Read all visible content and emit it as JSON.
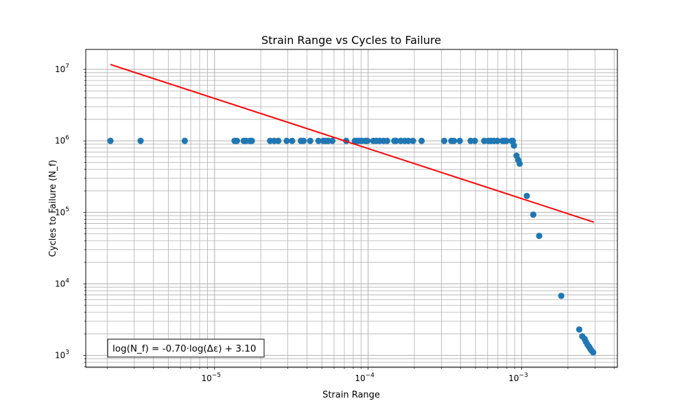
{
  "chart_data": {
    "type": "scatter",
    "title": "Strain Range vs Cycles to Failure",
    "xlabel": "Strain Range",
    "ylabel": "Cycles to Failure (N_f)",
    "xscale": "log",
    "yscale": "log",
    "xlim": [
      1.45e-06,
      0.0042
    ],
    "ylim": [
      680,
      19000000
    ],
    "grid": "both-major-minor",
    "x_ticks": [
      {
        "value": 1e-05,
        "base": "10",
        "exp": "−5"
      },
      {
        "value": 0.0001,
        "base": "10",
        "exp": "−4"
      },
      {
        "value": 0.001,
        "base": "10",
        "exp": "−3"
      }
    ],
    "y_ticks": [
      {
        "value": 1000,
        "base": "10",
        "exp": "3"
      },
      {
        "value": 10000,
        "base": "10",
        "exp": "4"
      },
      {
        "value": 100000,
        "base": "10",
        "exp": "5"
      },
      {
        "value": 1000000,
        "base": "10",
        "exp": "6"
      },
      {
        "value": 10000000,
        "base": "10",
        "exp": "7"
      }
    ],
    "series": [
      {
        "kind": "scatter",
        "color": "#1f77b4",
        "points": [
          [
            2.1e-06,
            1000000
          ],
          [
            3.3e-06,
            1000000
          ],
          [
            6.4e-06,
            1000000
          ],
          [
            1.35e-05,
            1000000
          ],
          [
            1.4e-05,
            1000000
          ],
          [
            1.55e-05,
            1000000
          ],
          [
            1.6e-05,
            1000000
          ],
          [
            1.7e-05,
            1000000
          ],
          [
            1.75e-05,
            1000000
          ],
          [
            2.3e-05,
            1000000
          ],
          [
            2.45e-05,
            1000000
          ],
          [
            2.6e-05,
            1000000
          ],
          [
            2.95e-05,
            1000000
          ],
          [
            3.2e-05,
            1000000
          ],
          [
            3.65e-05,
            1000000
          ],
          [
            3.8e-05,
            1000000
          ],
          [
            4.2e-05,
            1000000
          ],
          [
            4.75e-05,
            1000000
          ],
          [
            5.1e-05,
            1000000
          ],
          [
            5.3e-05,
            1000000
          ],
          [
            5.5e-05,
            1000000
          ],
          [
            5.85e-05,
            1000000
          ],
          [
            7.2e-05,
            1000000
          ],
          [
            8.2e-05,
            1000000
          ],
          [
            8.5e-05,
            1000000
          ],
          [
            8.8e-05,
            1000000
          ],
          [
            9.1e-05,
            1000000
          ],
          [
            9.6e-05,
            1000000
          ],
          [
            9.9e-05,
            1000000
          ],
          [
            0.000108,
            1000000
          ],
          [
            0.000113,
            1000000
          ],
          [
            0.000119,
            1000000
          ],
          [
            0.000126,
            1000000
          ],
          [
            0.000133,
            1000000
          ],
          [
            0.000148,
            1000000
          ],
          [
            0.000152,
            1000000
          ],
          [
            0.000163,
            1000000
          ],
          [
            0.000173,
            1000000
          ],
          [
            0.000183,
            1000000
          ],
          [
            0.000196,
            1000000
          ],
          [
            0.000223,
            1000000
          ],
          [
            0.000313,
            1000000
          ],
          [
            0.000348,
            1000000
          ],
          [
            0.000362,
            1000000
          ],
          [
            0.000395,
            1000000
          ],
          [
            0.000465,
            1000000
          ],
          [
            0.000495,
            1000000
          ],
          [
            0.00057,
            1000000
          ],
          [
            0.000605,
            1000000
          ],
          [
            0.00063,
            1000000
          ],
          [
            0.00066,
            1000000
          ],
          [
            0.000695,
            1000000
          ],
          [
            0.00075,
            1000000
          ],
          [
            0.00077,
            1000000
          ],
          [
            0.000795,
            1000000
          ],
          [
            0.00086,
            1000000
          ],
          [
            0.000875,
            1000000
          ],
          [
            0.00089,
            860000
          ],
          [
            0.000925,
            620000
          ],
          [
            0.00095,
            540000
          ],
          [
            0.00097,
            480000
          ],
          [
            0.00108,
            170000
          ],
          [
            0.00119,
            93000
          ],
          [
            0.0013,
            47000
          ],
          [
            0.00181,
            6800
          ],
          [
            0.00237,
            2300
          ],
          [
            0.00248,
            1850
          ],
          [
            0.00257,
            1700
          ],
          [
            0.00262,
            1550
          ],
          [
            0.00268,
            1420
          ],
          [
            0.00274,
            1330
          ],
          [
            0.00279,
            1250
          ],
          [
            0.00284,
            1180
          ],
          [
            0.00292,
            1100
          ]
        ]
      },
      {
        "kind": "fit-line",
        "color": "#ff0000",
        "points": [
          [
            2.1e-06,
            11700000
          ],
          [
            0.00295,
            73000
          ]
        ]
      }
    ],
    "annotation": "log(N_f) = -0.70·log(Δε) + 3.10"
  }
}
